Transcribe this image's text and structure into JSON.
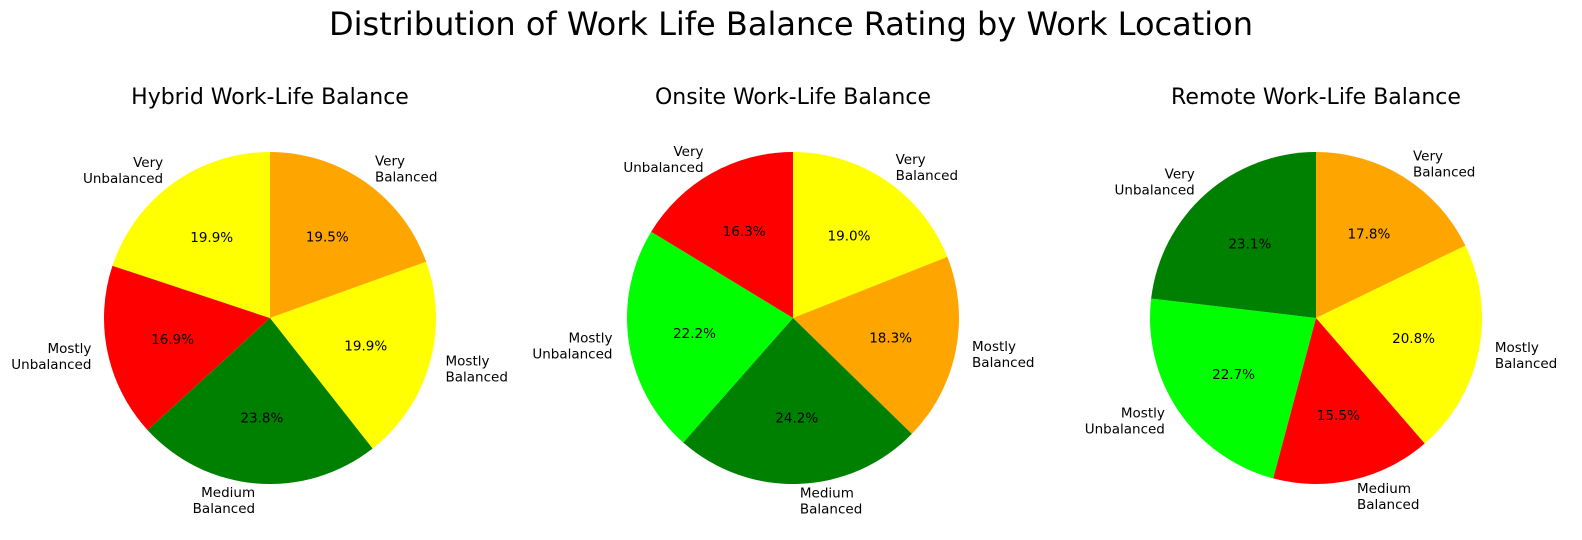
{
  "figure": {
    "title": "Distribution of Work Life Balance Rating by Work Location"
  },
  "colors": {
    "yellow": "#ffff00",
    "orange": "#ffa500",
    "red": "#ff0000",
    "green": "#008000",
    "lime": "#00ff00"
  },
  "chart_data": [
    {
      "type": "pie",
      "title": "Hybrid Work-Life Balance",
      "start_angle_deg": 90,
      "direction": "clockwise",
      "slices": [
        {
          "label": [
            "Very",
            "Balanced"
          ],
          "value": 19.5,
          "pct_text": "19.5%",
          "color": "#ffa500"
        },
        {
          "label": [
            "Mostly",
            "Balanced"
          ],
          "value": 19.9,
          "pct_text": "19.9%",
          "color": "#ffff00"
        },
        {
          "label": [
            "Medium",
            "Balanced"
          ],
          "value": 23.8,
          "pct_text": "23.8%",
          "color": "#008000"
        },
        {
          "label": [
            "Mostly",
            "Unbalanced"
          ],
          "value": 16.9,
          "pct_text": "16.9%",
          "color": "#ff0000"
        },
        {
          "label": [
            "Very",
            "Unbalanced"
          ],
          "value": 19.9,
          "pct_text": "19.9%",
          "color": "#ffff00"
        }
      ]
    },
    {
      "type": "pie",
      "title": "Onsite Work-Life Balance",
      "start_angle_deg": 90,
      "direction": "clockwise",
      "slices": [
        {
          "label": [
            "Very",
            "Balanced"
          ],
          "value": 19.0,
          "pct_text": "19.0%",
          "color": "#ffff00"
        },
        {
          "label": [
            "Mostly",
            "Balanced"
          ],
          "value": 18.3,
          "pct_text": "18.3%",
          "color": "#ffa500"
        },
        {
          "label": [
            "Medium",
            "Balanced"
          ],
          "value": 24.2,
          "pct_text": "24.2%",
          "color": "#008000"
        },
        {
          "label": [
            "Mostly",
            "Unbalanced"
          ],
          "value": 22.2,
          "pct_text": "22.2%",
          "color": "#00ff00"
        },
        {
          "label": [
            "Very",
            "Unbalanced"
          ],
          "value": 16.3,
          "pct_text": "16.3%",
          "color": "#ff0000"
        }
      ]
    },
    {
      "type": "pie",
      "title": "Remote Work-Life Balance",
      "start_angle_deg": 90,
      "direction": "clockwise",
      "slices": [
        {
          "label": [
            "Very",
            "Balanced"
          ],
          "value": 17.8,
          "pct_text": "17.8%",
          "color": "#ffa500"
        },
        {
          "label": [
            "Mostly",
            "Balanced"
          ],
          "value": 20.8,
          "pct_text": "20.8%",
          "color": "#ffff00"
        },
        {
          "label": [
            "Medium",
            "Balanced"
          ],
          "value": 15.5,
          "pct_text": "15.5%",
          "color": "#ff0000"
        },
        {
          "label": [
            "Mostly",
            "Unbalanced"
          ],
          "value": 22.7,
          "pct_text": "22.7%",
          "color": "#00ff00"
        },
        {
          "label": [
            "Very",
            "Unbalanced"
          ],
          "value": 23.1,
          "pct_text": "23.1%",
          "color": "#008000"
        }
      ]
    }
  ]
}
